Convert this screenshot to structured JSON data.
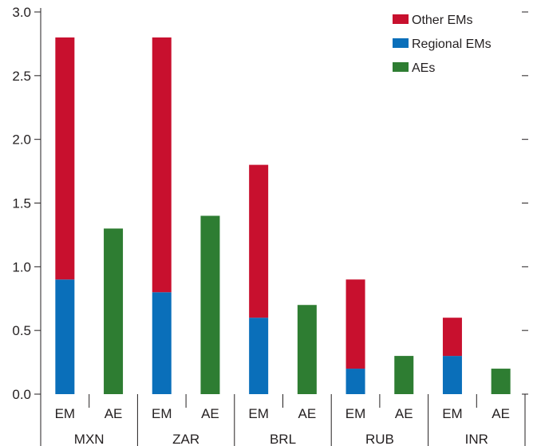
{
  "chart_data": {
    "type": "bar",
    "stacked": true,
    "groups": [
      "MXN",
      "ZAR",
      "BRL",
      "RUB",
      "INR"
    ],
    "subcategories": [
      "EM",
      "AE"
    ],
    "categories": [
      "MXN EM",
      "MXN AE",
      "ZAR EM",
      "ZAR AE",
      "BRL EM",
      "BRL AE",
      "RUB EM",
      "RUB AE",
      "INR EM",
      "INR AE"
    ],
    "series": [
      {
        "name": "Regional EMs",
        "color": "#0a6fba",
        "values": [
          0.9,
          0,
          0.8,
          0,
          0.6,
          0,
          0.2,
          0,
          0.3,
          0
        ]
      },
      {
        "name": "Other EMs",
        "color": "#c8102e",
        "values": [
          1.9,
          0,
          2.0,
          0,
          1.2,
          0,
          0.7,
          0,
          0.3,
          0
        ]
      },
      {
        "name": "AEs",
        "color": "#2e7d32",
        "values": [
          0,
          1.3,
          0,
          1.4,
          0,
          0.7,
          0,
          0.3,
          0,
          0.2
        ]
      }
    ],
    "legend_order": [
      "Other EMs",
      "Regional EMs",
      "AEs"
    ],
    "legend_position": "top-right",
    "y_ticks": [
      "0.0",
      "0.5",
      "1.0",
      "1.5",
      "2.0",
      "2.5",
      "3.0"
    ],
    "ylim": [
      0,
      3.0
    ],
    "grid": false,
    "title": "",
    "xlabel": "",
    "ylabel": ""
  }
}
